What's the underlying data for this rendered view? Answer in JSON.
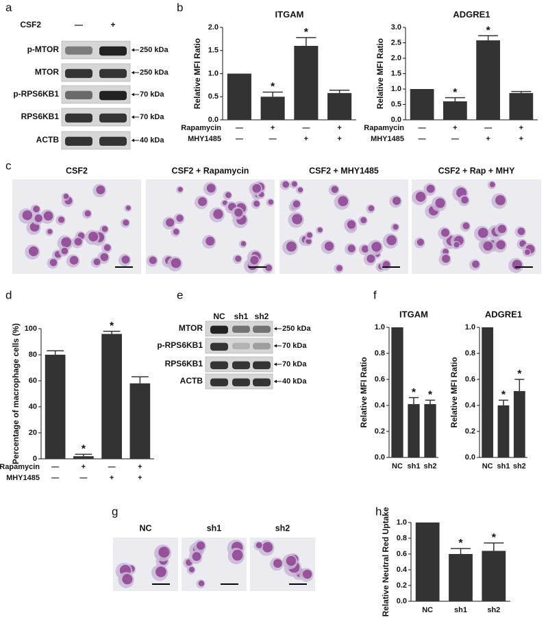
{
  "panel_labels": [
    "a",
    "b",
    "c",
    "d",
    "e",
    "f",
    "g",
    "h"
  ],
  "blot_a": {
    "treatment": "CSF2",
    "lanes": [
      "—",
      "+"
    ],
    "rows": [
      {
        "name": "p-MTOR",
        "size": "250 kDa"
      },
      {
        "name": "MTOR",
        "size": "250 kDa"
      },
      {
        "name": "p-RPS6KB1",
        "size": "70 kDa"
      },
      {
        "name": "RPS6KB1",
        "size": "70 kDa"
      },
      {
        "name": "ACTB",
        "size": "40 kDa"
      }
    ]
  },
  "blot_e": {
    "lanes": [
      "NC",
      "sh1",
      "sh2"
    ],
    "rows": [
      {
        "name": "MTOR",
        "size": "250 kDa"
      },
      {
        "name": "p-RPS6KB1",
        "size": "70 kDa"
      },
      {
        "name": "RPS6KB1",
        "size": "70 kDa"
      },
      {
        "name": "ACTB",
        "size": "40 kDa"
      }
    ]
  },
  "micrographs_c": [
    "CSF2",
    "CSF2 + Rapamycin",
    "CSF2 + MHY1485",
    "CSF2 + Rap + MHY"
  ],
  "micrographs_g": [
    "NC",
    "sh1",
    "sh2"
  ],
  "chart_data": [
    {
      "type": "bar",
      "title": "ITGAM",
      "ylabel": "Relative MFI Ratio",
      "color": "#333333",
      "categories": [
        null,
        null,
        null,
        null
      ],
      "values": [
        1.0,
        0.5,
        1.6,
        0.58
      ],
      "errors": [
        null,
        0.1,
        0.18,
        0.06
      ],
      "annotations": [
        null,
        "*",
        "*",
        null
      ],
      "conditions": [
        {
          "name": "Rapamycin",
          "values": [
            "—",
            "+",
            "—",
            "+"
          ]
        },
        {
          "name": "MHY1485",
          "values": [
            "—",
            "—",
            "+",
            "+"
          ]
        }
      ],
      "ylim": [
        0,
        2
      ],
      "yticks": [
        {
          "value": 0,
          "label": "0.0"
        },
        {
          "value": 0.5,
          "label": "0.5"
        },
        {
          "value": 1,
          "label": "1.0"
        },
        {
          "value": 1.5,
          "label": "1.5"
        },
        {
          "value": 2,
          "label": "2.0"
        }
      ]
    },
    {
      "type": "bar",
      "title": "ADGRE1",
      "ylabel": "Relative MFI Ratio",
      "color": "#333333",
      "categories": [
        null,
        null,
        null,
        null
      ],
      "values": [
        1.0,
        0.6,
        2.58,
        0.87
      ],
      "errors": [
        null,
        0.12,
        0.15,
        0.05
      ],
      "annotations": [
        null,
        "*",
        "*",
        null
      ],
      "conditions": [
        {
          "name": "Rapamycin",
          "values": [
            "—",
            "+",
            "—",
            "+"
          ]
        },
        {
          "name": "MHY1485",
          "values": [
            "—",
            "—",
            "+",
            "+"
          ]
        }
      ],
      "ylim": [
        0,
        3
      ],
      "yticks": [
        {
          "value": 0,
          "label": "0.0"
        },
        {
          "value": 0.5,
          "label": "0.5"
        },
        {
          "value": 1,
          "label": "1.0"
        },
        {
          "value": 1.5,
          "label": "1.5"
        },
        {
          "value": 2,
          "label": "2.0"
        },
        {
          "value": 2.5,
          "label": "2.5"
        },
        {
          "value": 3,
          "label": "3.0"
        }
      ]
    },
    {
      "type": "bar",
      "ylabel": "Percentage of macrophage cells (%)",
      "color": "#333333",
      "categories": [
        null,
        null,
        null,
        null
      ],
      "values": [
        80,
        2,
        96,
        58
      ],
      "errors": [
        3,
        1.5,
        2,
        5
      ],
      "annotations": [
        null,
        "*",
        "*",
        null
      ],
      "conditions": [
        {
          "name": "Rapamycin",
          "values": [
            "—",
            "+",
            "—",
            "+"
          ]
        },
        {
          "name": "MHY1485",
          "values": [
            "—",
            "—",
            "+",
            "+"
          ]
        }
      ],
      "ylim": [
        0,
        100
      ],
      "yticks": [
        0,
        20,
        40,
        60,
        80,
        100
      ]
    },
    {
      "type": "bar",
      "title": "ITGAM",
      "ylabel": "Relative MFI Ratio",
      "color": "#333333",
      "categories": [
        "NC",
        "sh1",
        "sh2"
      ],
      "values": [
        1.0,
        0.41,
        0.41
      ],
      "errors": [
        null,
        0.05,
        0.03
      ],
      "annotations": [
        null,
        "*",
        "*"
      ],
      "ylim": [
        0,
        1
      ],
      "yticks": [
        {
          "value": 0,
          "label": "0.0"
        },
        {
          "value": 0.2,
          "label": "0.2"
        },
        {
          "value": 0.4,
          "label": "0.4"
        },
        {
          "value": 0.6,
          "label": "0.6"
        },
        {
          "value": 0.8,
          "label": "0.8"
        },
        {
          "value": 1,
          "label": "1.0"
        }
      ]
    },
    {
      "type": "bar",
      "title": "ADGRE1",
      "ylabel": "Relative MFI Ratio",
      "color": "#333333",
      "categories": [
        "NC",
        "sh1",
        "sh2"
      ],
      "values": [
        1.0,
        0.4,
        0.51
      ],
      "errors": [
        null,
        0.04,
        0.09
      ],
      "annotations": [
        null,
        "*",
        "*"
      ],
      "ylim": [
        0,
        1
      ],
      "yticks": [
        {
          "value": 0,
          "label": "0.0"
        },
        {
          "value": 0.2,
          "label": "0.2"
        },
        {
          "value": 0.4,
          "label": "0.4"
        },
        {
          "value": 0.6,
          "label": "0.6"
        },
        {
          "value": 0.8,
          "label": "0.8"
        },
        {
          "value": 1,
          "label": "1.0"
        }
      ]
    },
    {
      "type": "bar",
      "ylabel": "Relative Neutral Red Uptake",
      "color": "#333333",
      "categories": [
        "NC",
        "sh1",
        "sh2"
      ],
      "values": [
        1.0,
        0.6,
        0.64
      ],
      "errors": [
        null,
        0.07,
        0.1
      ],
      "annotations": [
        null,
        "*",
        "*"
      ],
      "ylim": [
        0,
        1
      ],
      "yticks": [
        {
          "value": 0,
          "label": "0.0"
        },
        {
          "value": 0.2,
          "label": "0.2"
        },
        {
          "value": 0.4,
          "label": "0.4"
        },
        {
          "value": 0.6,
          "label": "0.6"
        },
        {
          "value": 0.8,
          "label": "0.8"
        },
        {
          "value": 1,
          "label": "1.0"
        }
      ]
    }
  ]
}
